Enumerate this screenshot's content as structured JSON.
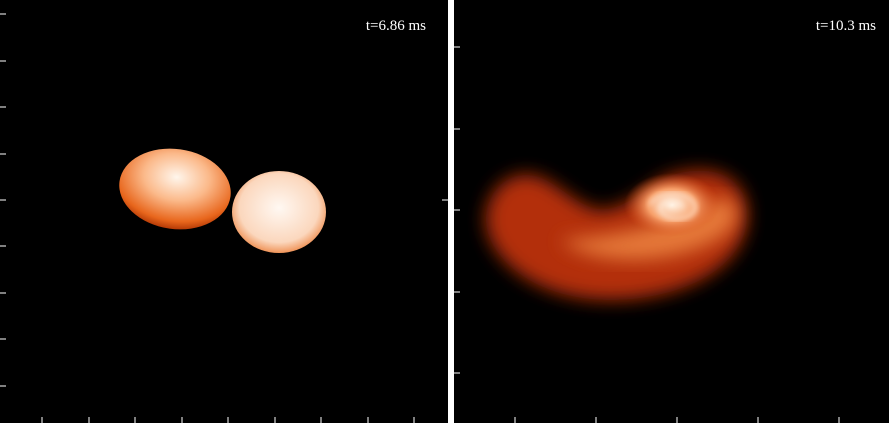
{
  "panels": [
    {
      "time_label": "t=6.86 ms"
    },
    {
      "time_label": "t=10.3 ms"
    }
  ]
}
